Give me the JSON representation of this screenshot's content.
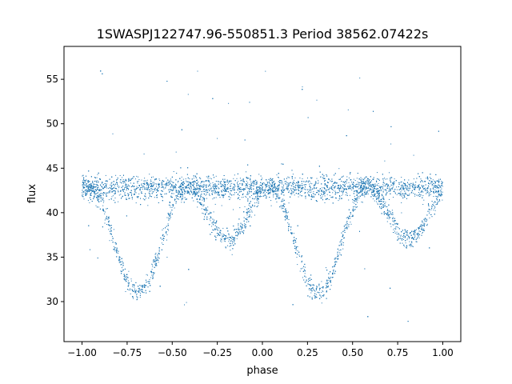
{
  "chart_data": {
    "type": "scatter",
    "title": "1SWASPJ122747.96-550851.3 Period 38562.07422s",
    "xlabel": "phase",
    "ylabel": "flux",
    "xlim": [
      -1.1,
      1.1
    ],
    "ylim": [
      25.5,
      58.7
    ],
    "xticks": [
      -1.0,
      -0.75,
      -0.5,
      -0.25,
      0.0,
      0.25,
      0.5,
      0.75,
      1.0
    ],
    "xtick_labels": [
      "−1.00",
      "−0.75",
      "−0.50",
      "−0.25",
      "0.00",
      "0.25",
      "0.50",
      "0.75",
      "1.00"
    ],
    "yticks": [
      30,
      35,
      40,
      45,
      50,
      55
    ],
    "ytick_labels": [
      "30",
      "35",
      "40",
      "45",
      "50",
      "55"
    ],
    "grid": false,
    "legend": "none",
    "series_color": "#1f77b4",
    "series": [
      {
        "baseline_flux": 42.8,
        "baseline_spread": 1.1,
        "phase_range": [
          -1.0,
          1.0
        ],
        "eclipses": [
          {
            "phase": -0.69,
            "min_flux": 31.0,
            "half_width": 0.27
          },
          {
            "phase": 0.31,
            "min_flux": 31.0,
            "half_width": 0.27
          },
          {
            "phase": -0.19,
            "min_flux": 37.0,
            "half_width": 0.23
          },
          {
            "phase": 0.81,
            "min_flux": 37.0,
            "half_width": 0.23
          }
        ]
      }
    ]
  }
}
